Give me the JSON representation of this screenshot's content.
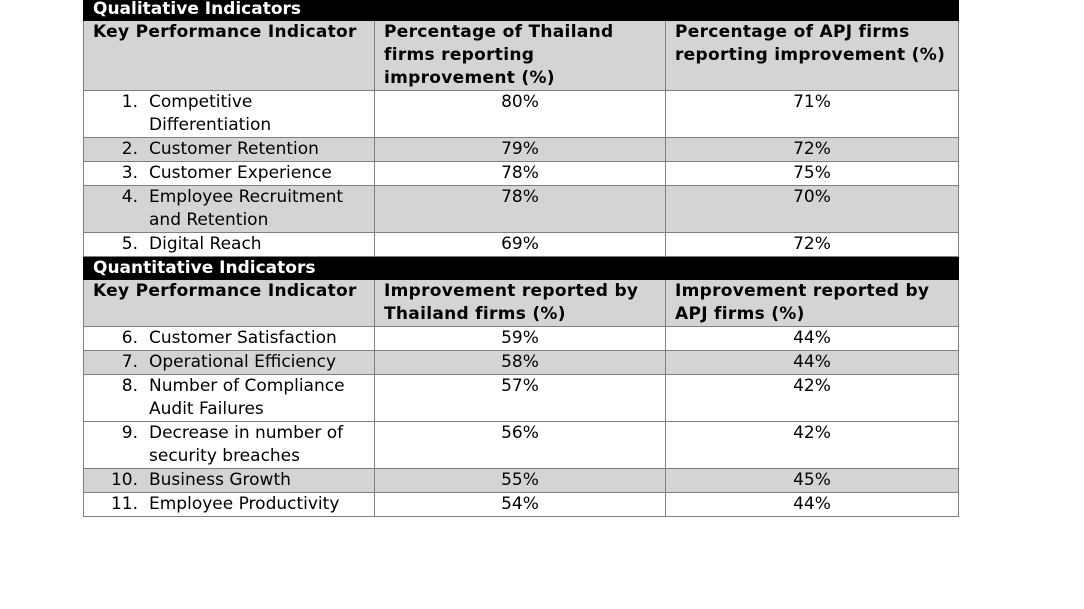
{
  "qualitative": {
    "section_title": "Qualitative Indicators",
    "headers": [
      "Key Performance Indicator",
      "Percentage of Thailand firms reporting improvement (%)",
      "Percentage of APJ firms reporting improvement (%)"
    ],
    "rows": [
      {
        "index": "1.",
        "name": "Competitive Differentiation",
        "thailand": "80%",
        "apj": "71%"
      },
      {
        "index": "2.",
        "name": "Customer Retention",
        "thailand": "79%",
        "apj": "72%"
      },
      {
        "index": "3.",
        "name": "Customer Experience",
        "thailand": "78%",
        "apj": "75%"
      },
      {
        "index": "4.",
        "name": "Employee Recruitment and Retention",
        "thailand": "78%",
        "apj": "70%"
      },
      {
        "index": "5.",
        "name": "Digital Reach",
        "thailand": "69%",
        "apj": "72%"
      }
    ]
  },
  "quantitative": {
    "section_title": "Quantitative Indicators",
    "headers": [
      "Key Performance Indicator",
      "Improvement reported by Thailand firms (%)",
      "Improvement reported by APJ firms (%)"
    ],
    "rows": [
      {
        "index": "6.",
        "name": "Customer Satisfaction",
        "thailand": "59%",
        "apj": "44%"
      },
      {
        "index": "7.",
        "name": "Operational Efficiency",
        "thailand": "58%",
        "apj": "44%"
      },
      {
        "index": "8.",
        "name": "Number of Compliance Audit Failures",
        "thailand": "57%",
        "apj": "42%"
      },
      {
        "index": "9.",
        "name": "Decrease in number of security breaches",
        "thailand": "56%",
        "apj": "42%"
      },
      {
        "index": "10.",
        "name": "Business Growth",
        "thailand": "55%",
        "apj": "45%"
      },
      {
        "index": "11.",
        "name": "Employee Productivity",
        "thailand": "54%",
        "apj": "44%"
      }
    ]
  },
  "colors": {
    "section_bg": "#000000",
    "section_text": "#ffffff",
    "shaded_row_bg": "#d4d4d4",
    "border": "#7f7f7f"
  }
}
